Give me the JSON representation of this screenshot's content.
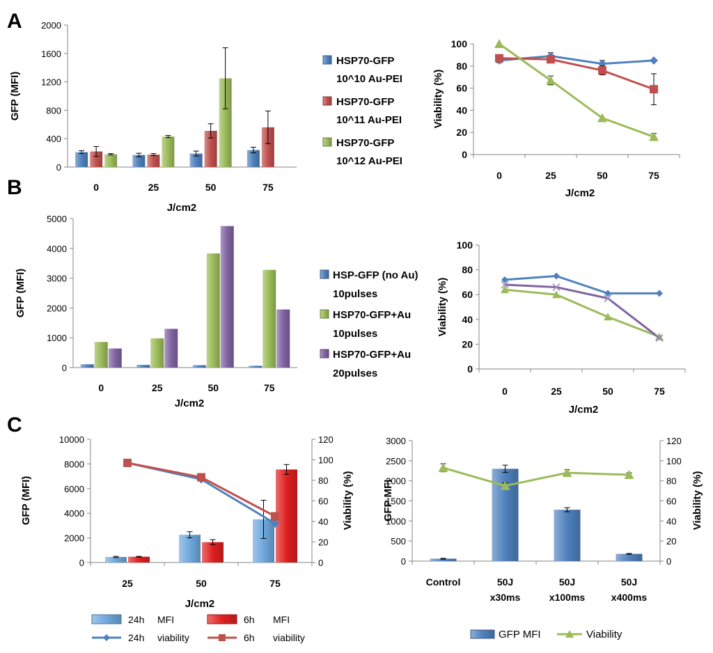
{
  "chart_data": [
    {
      "id": "A1",
      "panel_label": "A",
      "type": "bar",
      "ylabel": "GFP (MFI)",
      "xlabel": "J/cm2",
      "ylim": [
        0,
        2000
      ],
      "yticks": [
        0,
        400,
        800,
        1200,
        1600,
        2000
      ],
      "categories": [
        "0",
        "25",
        "50",
        "75"
      ],
      "series": [
        {
          "name": "HSP70-GFP",
          "name2": "10^10 Au-PEI",
          "color": "#4f81bd",
          "values": [
            210,
            170,
            190,
            240
          ],
          "errors": [
            20,
            25,
            35,
            40
          ]
        },
        {
          "name": "HSP70-GFP",
          "name2": "10^11 Au-PEI",
          "color": "#c0504d",
          "values": [
            220,
            175,
            510,
            560
          ],
          "errors": [
            70,
            15,
            100,
            230
          ]
        },
        {
          "name": "HSP70-GFP",
          "name2": "10^12 Au-PEI",
          "color": "#9bbb59",
          "values": [
            180,
            430,
            1250,
            null
          ],
          "errors": [
            10,
            15,
            430,
            null
          ]
        }
      ]
    },
    {
      "id": "A2",
      "type": "line",
      "ylabel": "Viability (%)",
      "xlabel": "J/cm2",
      "ylim": [
        0,
        100
      ],
      "yticks": [
        0,
        20,
        40,
        60,
        80,
        100
      ],
      "categories": [
        "0",
        "25",
        "50",
        "75"
      ],
      "series": [
        {
          "name": "HSP70-GFP 10^10 Au-PEI",
          "color": "#4f81bd",
          "marker": "diamond",
          "values": [
            85,
            89,
            82,
            85
          ],
          "errors": [
            2,
            3,
            3,
            0
          ]
        },
        {
          "name": "HSP70-GFP 10^11 Au-PEI",
          "color": "#c0504d",
          "marker": "square",
          "values": [
            87,
            86,
            76,
            59
          ],
          "errors": [
            0,
            0,
            4,
            14
          ]
        },
        {
          "name": "HSP70-GFP 10^12 Au-PEI",
          "color": "#9bbb59",
          "marker": "triangle",
          "values": [
            100,
            67,
            33,
            16
          ],
          "errors": [
            0,
            4,
            0,
            3
          ]
        }
      ]
    },
    {
      "id": "B1",
      "panel_label": "B",
      "type": "bar",
      "ylabel": "GFP (MFI)",
      "xlabel": "J/cm2",
      "ylim": [
        0,
        5000
      ],
      "yticks": [
        0,
        1000,
        2000,
        3000,
        4000,
        5000
      ],
      "categories": [
        "0",
        "25",
        "50",
        "75"
      ],
      "series": [
        {
          "name": "HSP-GFP (no Au)",
          "name2": "10pulses",
          "color": "#4f81bd",
          "values": [
            110,
            90,
            80,
            60
          ]
        },
        {
          "name": "HSP70-GFP+Au",
          "name2": "10pulses",
          "color": "#9bbb59",
          "values": [
            860,
            980,
            3830,
            3280
          ]
        },
        {
          "name": "HSP70-GFP+Au",
          "name2": "20pulses",
          "color": "#8064a2",
          "values": [
            640,
            1300,
            4750,
            1950
          ]
        }
      ]
    },
    {
      "id": "B2",
      "type": "line",
      "ylabel": "Viability (%)",
      "xlabel": "J/cm2",
      "ylim": [
        0,
        100
      ],
      "yticks": [
        0,
        20,
        40,
        60,
        80,
        100
      ],
      "categories": [
        "0",
        "25",
        "50",
        "75"
      ],
      "series": [
        {
          "name": "HSP-GFP (no Au) 10pulses",
          "color": "#4f81bd",
          "marker": "diamond",
          "values": [
            72,
            75,
            61,
            61
          ]
        },
        {
          "name": "HSP70-GFP+Au 10pulses",
          "color": "#9bbb59",
          "marker": "triangle",
          "values": [
            64,
            60,
            42,
            26
          ]
        },
        {
          "name": "HSP70-GFP+Au 20pulses",
          "color": "#8064a2",
          "marker": "x",
          "values": [
            68,
            66,
            57,
            25
          ]
        }
      ]
    },
    {
      "id": "C1",
      "panel_label": "C",
      "type": "bar+line",
      "ylabel": "GFP (MFI)",
      "y2label": "Viability (%)",
      "xlabel": "J/cm2",
      "ylim": [
        0,
        10000
      ],
      "yticks": [
        0,
        2000,
        4000,
        6000,
        8000,
        10000
      ],
      "y2lim": [
        0,
        120
      ],
      "y2ticks": [
        0,
        20,
        40,
        60,
        80,
        100,
        120
      ],
      "categories": [
        "25",
        "50",
        "75"
      ],
      "legend": [
        {
          "name": "24h",
          "desc": "MFI"
        },
        {
          "name": "6h",
          "desc": "MFI"
        },
        {
          "name": "24h",
          "desc": "viability"
        },
        {
          "name": "6h",
          "desc": "viability"
        }
      ],
      "bars": [
        {
          "name": "24h MFI",
          "color": "#6fa8dc",
          "values": [
            450,
            2250,
            3500
          ],
          "errors": [
            50,
            250,
            1550
          ]
        },
        {
          "name": "6h MFI",
          "color": "#e02020",
          "values": [
            470,
            1650,
            7550
          ],
          "errors": [
            30,
            200,
            400
          ]
        }
      ],
      "lines": [
        {
          "name": "24h viability",
          "color": "#4f81bd",
          "marker": "diamond",
          "values": [
            97,
            81,
            38
          ]
        },
        {
          "name": "6h viability",
          "color": "#c0504d",
          "marker": "square",
          "values": [
            97,
            83,
            45
          ]
        }
      ]
    },
    {
      "id": "C2",
      "type": "bar+line",
      "ylabel": "GFP MFI",
      "y2label": "Viability (%)",
      "ylim": [
        0,
        3000
      ],
      "yticks": [
        0,
        500,
        1000,
        1500,
        2000,
        2500,
        3000
      ],
      "y2lim": [
        0,
        120
      ],
      "y2ticks": [
        0,
        20,
        40,
        60,
        80,
        100,
        120
      ],
      "categories": [
        [
          "Control"
        ],
        [
          "50J",
          "x30ms"
        ],
        [
          "50J",
          "x100ms"
        ],
        [
          "50J",
          "x400ms"
        ]
      ],
      "bars": [
        {
          "name": "GFP MFI",
          "color": "#4f81bd",
          "values": [
            60,
            2300,
            1280,
            180
          ],
          "errors": [
            10,
            90,
            50,
            10
          ]
        }
      ],
      "lines": [
        {
          "name": "Viability",
          "color": "#9bbb59",
          "marker": "triangle",
          "values": [
            93,
            75,
            88,
            86
          ],
          "errors": [
            4,
            3,
            3,
            2
          ]
        }
      ]
    }
  ]
}
